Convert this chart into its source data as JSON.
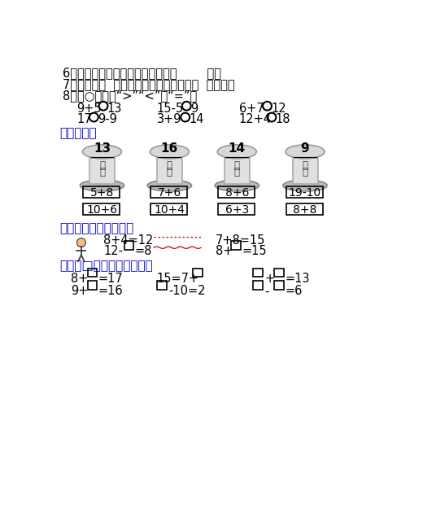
{
  "background_color": "#ffffff",
  "text_color": "#000000",
  "title_color": "#0000cc",
  "line6": "6．十位和个位都是１，这个数是（        ）。",
  "line7": "7．我今年（  ）岁了，再过６年，我就（  ）岁了。",
  "line8": "8．在○里填上“>”“<”或“=”。",
  "section3": "三、送信。",
  "spool_numbers": [
    "13",
    "16",
    "14",
    "9"
  ],
  "row1_boxes": [
    "5+8",
    "7+6",
    "8+6",
    "19-10"
  ],
  "row2_boxes": [
    "10+6",
    "10+4",
    "6+3",
    "8+8"
  ],
  "section4": "四、想一想，填一填。",
  "eq1": "8+4=12",
  "eq2": "7+8=15",
  "section5": "五、在□里填上合适的数。"
}
